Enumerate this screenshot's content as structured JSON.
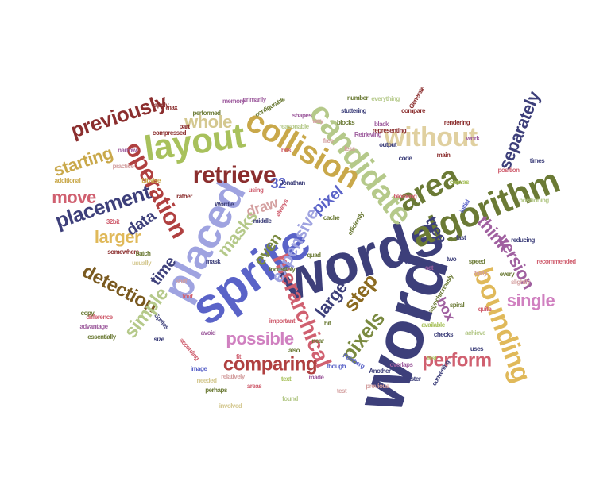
{
  "word_cloud": {
    "words": [
      {
        "text": "word",
        "color": "#3d3f7a"
      },
      {
        "text": "words",
        "color": "#3d3f7a"
      },
      {
        "text": "sprite",
        "color": "#5a63c8"
      },
      {
        "text": "placed",
        "color": "#9fa3e0"
      },
      {
        "text": "algorithm",
        "color": "#6b7a35"
      },
      {
        "text": "area",
        "color": "#6b7a35"
      },
      {
        "text": "candidate",
        "color": "#b5c98a"
      },
      {
        "text": "layout",
        "color": "#a8c15c"
      },
      {
        "text": "collision",
        "color": "#c9a84a"
      },
      {
        "text": "bounding",
        "color": "#e0b95a"
      },
      {
        "text": "retrieve",
        "color": "#8b2e2e"
      },
      {
        "text": "without",
        "color": "#e0d0a0"
      },
      {
        "text": "operation",
        "color": "#b04040"
      },
      {
        "text": "previously",
        "color": "#8b2e2e"
      },
      {
        "text": "whole",
        "color": "#d4c890"
      },
      {
        "text": "separately",
        "color": "#3d3f7a"
      },
      {
        "text": "hierarchical",
        "color": "#d06070"
      },
      {
        "text": "placement",
        "color": "#3d3f7a"
      },
      {
        "text": "detection",
        "color": "#7a5a20"
      },
      {
        "text": "comparing",
        "color": "#b04040"
      },
      {
        "text": "perform",
        "color": "#d06070"
      },
      {
        "text": "possible",
        "color": "#d080c0"
      },
      {
        "text": "pixels",
        "color": "#7a8a40"
      },
      {
        "text": "expensive",
        "color": "#9fa3e0"
      },
      {
        "text": "masks",
        "color": "#b5c98a"
      },
      {
        "text": "simple",
        "color": "#b5c98a"
      },
      {
        "text": "version",
        "color": "#a060a0"
      },
      {
        "text": "think",
        "color": "#a060a0"
      },
      {
        "text": "large",
        "color": "#3d3f7a"
      },
      {
        "text": "step",
        "color": "#8b6a20"
      },
      {
        "text": "single",
        "color": "#d080c0"
      },
      {
        "text": "starting",
        "color": "#c9a84a"
      },
      {
        "text": "move",
        "color": "#d06070"
      },
      {
        "text": "larger",
        "color": "#e0b95a"
      },
      {
        "text": "time",
        "color": "#3d3f7a"
      },
      {
        "text": "draw",
        "color": "#d4a0a0"
      },
      {
        "text": "pixel",
        "color": "#5a63c8"
      },
      {
        "text": "data",
        "color": "#3d3f7a"
      },
      {
        "text": "even",
        "color": "#7a8a40"
      },
      {
        "text": "box",
        "color": "#a060a0"
      },
      {
        "text": "tree",
        "color": "#3d3f7a"
      },
      {
        "text": "32",
        "color": "#5a63c8"
      },
      {
        "text": "stuttering",
        "color": "#3d3f7a"
      },
      {
        "text": "rendering",
        "color": "#8b2e2e"
      },
      {
        "text": "asynchronously",
        "color": "#6b7a35"
      },
      {
        "text": "Feinberg",
        "color": "#5a63c8"
      },
      {
        "text": "Wordle",
        "color": "#3d3f7a"
      },
      {
        "text": "memory",
        "color": "#a060a0"
      },
      {
        "text": "compressed",
        "color": "#8b2e2e"
      },
      {
        "text": "configurable",
        "color": "#6b7a35"
      },
      {
        "text": "efficiently",
        "color": "#6b7a35"
      },
      {
        "text": "representing",
        "color": "#8b2e2e"
      },
      {
        "text": "positioning",
        "color": "#b5c98a"
      },
      {
        "text": "recommended",
        "color": "#d06070"
      },
      {
        "text": "compare",
        "color": "#8b2e2e"
      },
      {
        "text": "available",
        "color": "#a8c15c"
      },
      {
        "text": "Sprites",
        "color": "#3d3f7a"
      },
      {
        "text": "checks",
        "color": "#3d3f7a"
      },
      {
        "text": "difference",
        "color": "#d06070"
      },
      {
        "text": "incredibly",
        "color": "#6b7a35"
      },
      {
        "text": "important",
        "color": "#d06070"
      },
      {
        "text": "converting",
        "color": "#3d3f7a"
      },
      {
        "text": "somewhere",
        "color": "#8b2e2e"
      },
      {
        "text": "Another",
        "color": "#3d3f7a"
      },
      {
        "text": "Retrieving",
        "color": "#a060a0"
      },
      {
        "text": "Generate",
        "color": "#8b2e2e"
      },
      {
        "text": "shapes",
        "color": "#a060a0"
      },
      {
        "text": "blocks",
        "color": "#6b7a35"
      },
      {
        "text": "number",
        "color": "#6b7a35"
      },
      {
        "text": "everything",
        "color": "#b5c98a"
      },
      {
        "text": "primarily",
        "color": "#a060a0"
      },
      {
        "text": "performed",
        "color": "#6b7a35"
      },
      {
        "text": "reasonable",
        "color": "#b5c98a"
      },
      {
        "text": "slightly",
        "color": "#d4a0a0"
      },
      {
        "text": "reducing",
        "color": "#3d3f7a"
      },
      {
        "text": "every",
        "color": "#6b7a35"
      },
      {
        "text": "times",
        "color": "#3d3f7a"
      },
      {
        "text": "position",
        "color": "#d06070"
      },
      {
        "text": "initial",
        "color": "#5a63c8"
      },
      {
        "text": "code",
        "color": "#3d3f7a"
      },
      {
        "text": "black",
        "color": "#a060a0"
      },
      {
        "text": "output",
        "color": "#3d3f7a"
      },
      {
        "text": "rather",
        "color": "#8b2e2e"
      },
      {
        "text": "perhaps",
        "color": "#6b7a35"
      },
      {
        "text": "batch",
        "color": "#6b7a35"
      },
      {
        "text": "always",
        "color": "#d06070"
      },
      {
        "text": "according",
        "color": "#d06070"
      },
      {
        "text": "achieve",
        "color": "#b5c98a"
      },
      {
        "text": "overlaps",
        "color": "#a060a0"
      },
      {
        "text": "though",
        "color": "#5a63c8"
      },
      {
        "text": "previous",
        "color": "#d4a0a0"
      },
      {
        "text": "near",
        "color": "#6b7a35"
      },
      {
        "text": "blocking",
        "color": "#d06070"
      },
      {
        "text": "part",
        "color": "#8b2e2e"
      },
      {
        "text": "usually",
        "color": "#d4c890"
      },
      {
        "text": "copy",
        "color": "#6b7a35"
      },
      {
        "text": "advantage",
        "color": "#a060a0"
      },
      {
        "text": "relatively",
        "color": "#d4a0a0"
      },
      {
        "text": "practice",
        "color": "#d4a0a0"
      },
      {
        "text": "additional",
        "color": "#c9a84a"
      },
      {
        "text": "middle",
        "color": "#3d3f7a"
      },
      {
        "text": "essentially",
        "color": "#6b7a35"
      },
      {
        "text": "involved",
        "color": "#d4c890"
      },
      {
        "text": "mask",
        "color": "#3d3f7a"
      },
      {
        "text": "avoid",
        "color": "#a060a0"
      },
      {
        "text": "areas",
        "color": "#d06070"
      },
      {
        "text": "found",
        "color": "#b5c98a"
      },
      {
        "text": "fast",
        "color": "#3d3f7a"
      },
      {
        "text": "bits",
        "color": "#d06070"
      },
      {
        "text": "free",
        "color": "#d4a0a0"
      },
      {
        "text": "32bit",
        "color": "#d06070"
      },
      {
        "text": "speed",
        "color": "#6b7a35"
      },
      {
        "text": "cache",
        "color": "#6b7a35"
      },
      {
        "text": "fairly",
        "color": "#d4a0a0"
      },
      {
        "text": "apply",
        "color": "#8b2e2e"
      },
      {
        "text": "bitwise",
        "color": "#c9a84a"
      },
      {
        "text": "narrow",
        "color": "#a060a0"
      },
      {
        "text": "needed",
        "color": "#d4c890"
      },
      {
        "text": "spiral",
        "color": "#6b7a35"
      },
      {
        "text": "quite",
        "color": "#d06070"
      },
      {
        "text": "faster",
        "color": "#3d3f7a"
      },
      {
        "text": "canvas",
        "color": "#a8c15c"
      },
      {
        "text": "using",
        "color": "#d06070"
      },
      {
        "text": "Jonathan",
        "color": "#3d3f7a"
      },
      {
        "text": "quad",
        "color": "#6b7a35"
      },
      {
        "text": "shift",
        "color": "#d4a0a0"
      },
      {
        "text": "main",
        "color": "#8b2e2e"
      },
      {
        "text": "work",
        "color": "#a060a0"
      },
      {
        "text": "less",
        "color": "#d4a0a0"
      },
      {
        "text": "image",
        "color": "#5a63c8"
      },
      {
        "text": "font",
        "color": "#d06070"
      },
      {
        "text": "also",
        "color": "#6b7a35"
      },
      {
        "text": "first",
        "color": "#a8c15c"
      },
      {
        "text": "test",
        "color": "#d4a0a0"
      },
      {
        "text": "uses",
        "color": "#3d3f7a"
      },
      {
        "text": "made",
        "color": "#a060a0"
      },
      {
        "text": "size",
        "color": "#3d3f7a"
      },
      {
        "text": "text",
        "color": "#a8c15c"
      },
      {
        "text": "fit",
        "color": "#d06070"
      },
      {
        "text": "hit",
        "color": "#6b7a35"
      },
      {
        "text": "way",
        "color": "#d4a0a0"
      },
      {
        "text": "two",
        "color": "#3d3f7a"
      },
      {
        "text": "max",
        "color": "#8b2e2e"
      },
      {
        "text": "set",
        "color": "#a060a0"
      }
    ]
  }
}
